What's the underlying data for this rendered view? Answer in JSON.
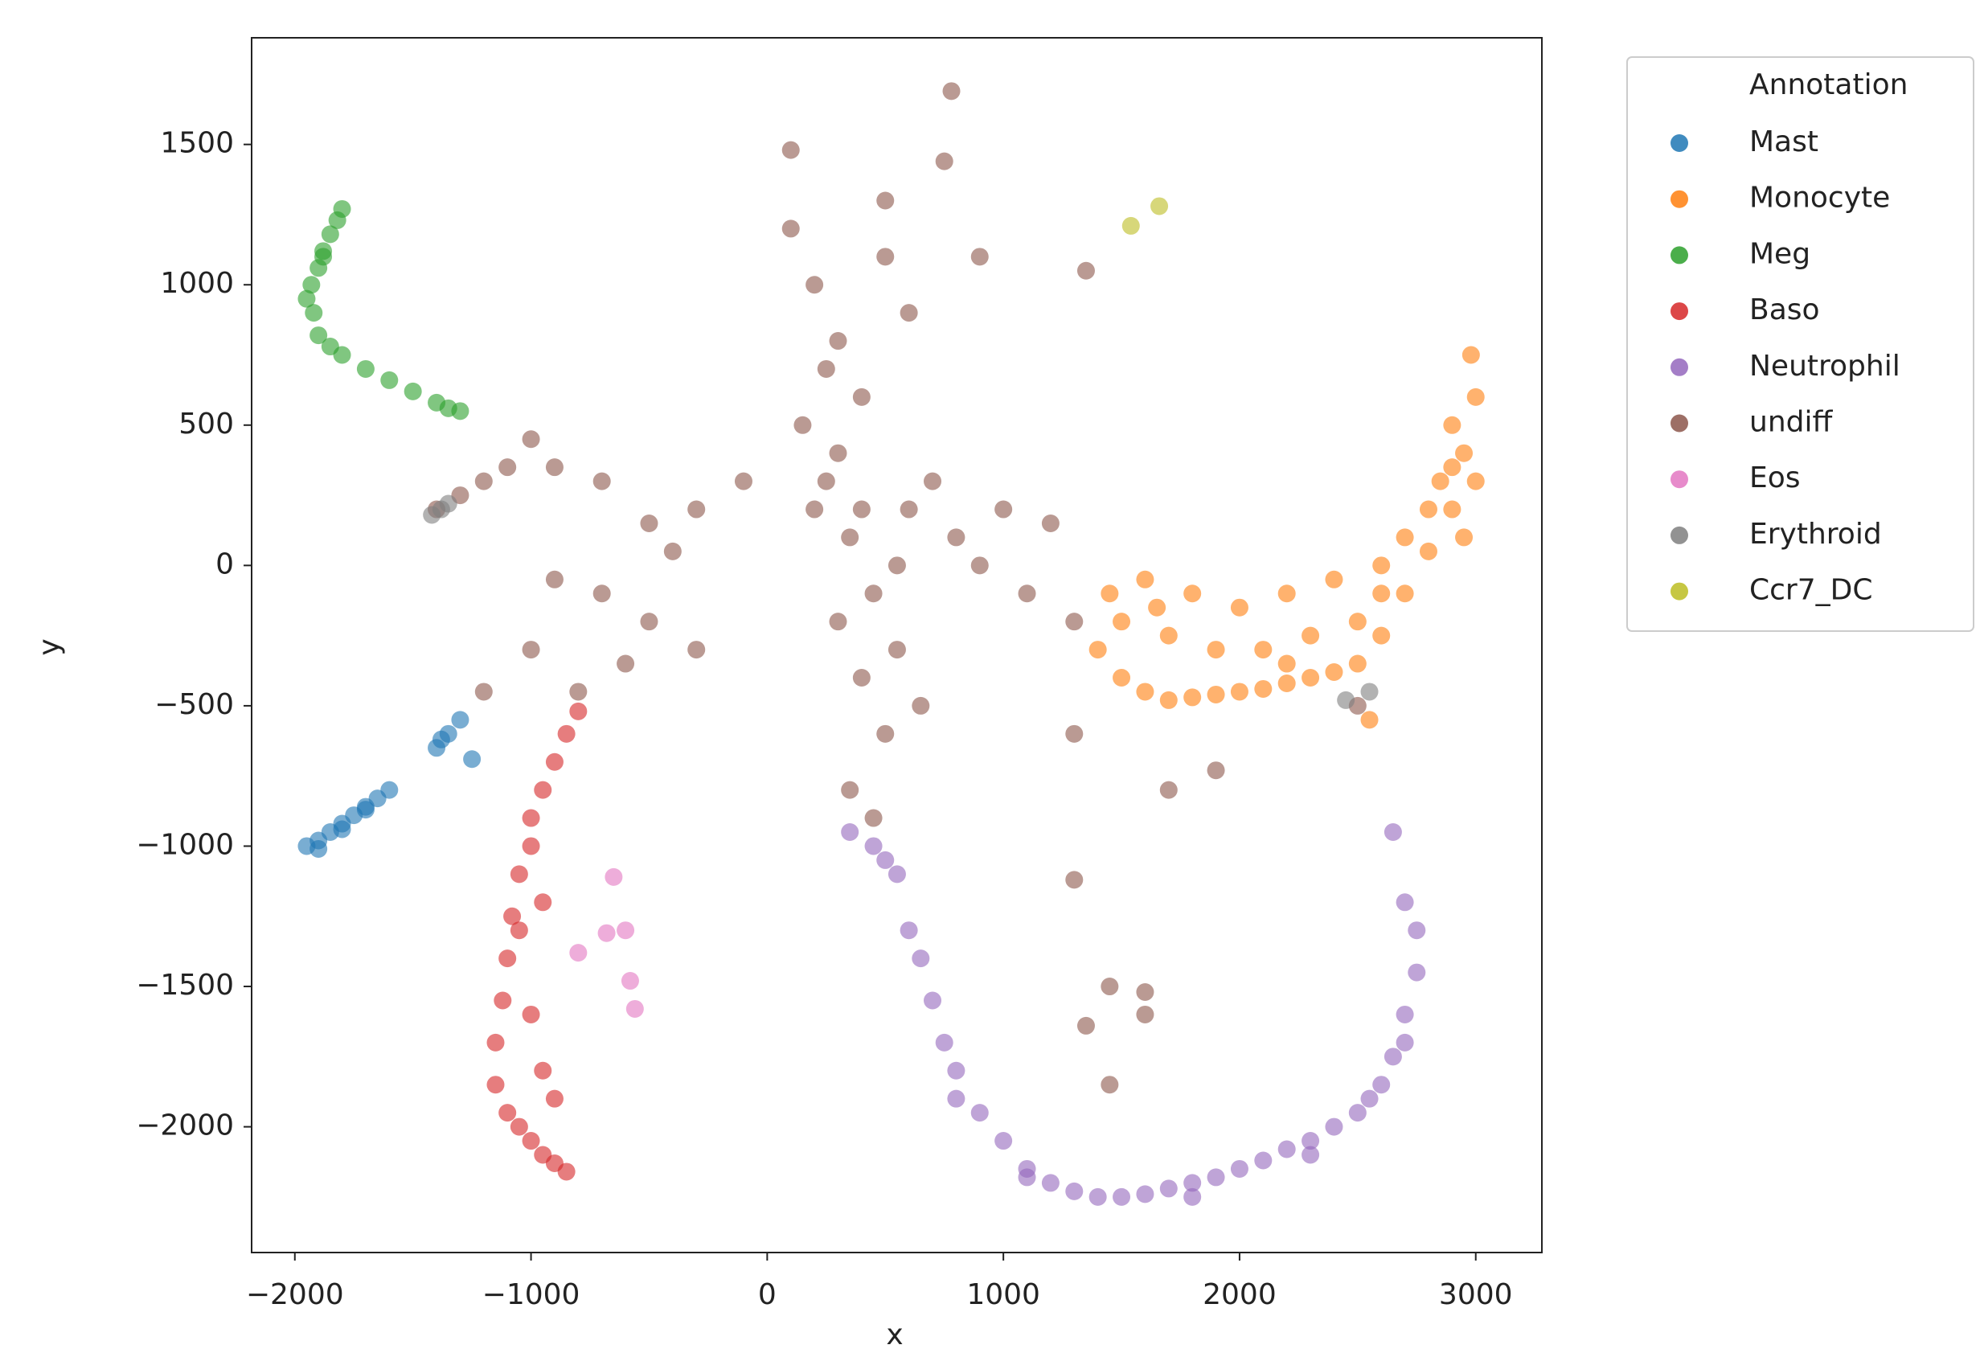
{
  "chart_data": {
    "type": "scatter",
    "xlabel": "x",
    "ylabel": "y",
    "legend_title": "Annotation",
    "legend": "right",
    "xlim": [
      -2183,
      3280
    ],
    "ylim": [
      -2448,
      1880
    ],
    "xticks": [
      {
        "value": -2000,
        "label": "−2000"
      },
      {
        "value": -1000,
        "label": "−1000"
      },
      0,
      1000,
      2000,
      3000
    ],
    "yticks": [
      {
        "value": -2000,
        "label": "−2000"
      },
      {
        "value": -1500,
        "label": "−1500"
      },
      {
        "value": -1000,
        "label": "−1000"
      },
      {
        "value": -500,
        "label": "−500"
      },
      0,
      500,
      1000,
      1500
    ],
    "series": [
      {
        "name": "Mast",
        "color": "#1f77b4",
        "x": [
          -1950,
          -1900,
          -1850,
          -1800,
          -1750,
          -1700,
          -1650,
          -1600,
          -1900,
          -1800,
          -1700,
          -1400,
          -1350,
          -1300,
          -1250,
          -1380
        ],
        "y": [
          -1000,
          -980,
          -950,
          -920,
          -890,
          -860,
          -830,
          -800,
          -1010,
          -940,
          -870,
          -650,
          -600,
          -550,
          -690,
          -620
        ]
      },
      {
        "name": "Monocyte",
        "color": "#ff7f0e",
        "x": [
          1400,
          1500,
          1600,
          1700,
          1800,
          1900,
          2000,
          2100,
          2200,
          2300,
          2400,
          2500,
          2600,
          2700,
          2800,
          2900,
          2950,
          3000,
          2980,
          2900,
          2850,
          1450,
          1600,
          1800,
          2000,
          2200,
          2400,
          2600,
          2700,
          2800,
          2900,
          1500,
          1700,
          1900,
          2100,
          2300,
          2500,
          2600,
          1650,
          2200,
          2550,
          3000,
          2950
        ],
        "y": [
          -300,
          -400,
          -450,
          -480,
          -470,
          -460,
          -450,
          -440,
          -420,
          -400,
          -380,
          -350,
          -250,
          -100,
          50,
          200,
          400,
          600,
          750,
          500,
          300,
          -100,
          -50,
          -100,
          -150,
          -100,
          -50,
          0,
          100,
          200,
          350,
          -200,
          -250,
          -300,
          -300,
          -250,
          -200,
          -100,
          -150,
          -350,
          -550,
          300,
          100
        ]
      },
      {
        "name": "Meg",
        "color": "#2ca02c",
        "x": [
          -1800,
          -1820,
          -1850,
          -1880,
          -1900,
          -1930,
          -1950,
          -1920,
          -1900,
          -1850,
          -1800,
          -1700,
          -1600,
          -1500,
          -1400,
          -1350,
          -1300,
          -1880
        ],
        "y": [
          1270,
          1230,
          1180,
          1120,
          1060,
          1000,
          950,
          900,
          820,
          780,
          750,
          700,
          660,
          620,
          580,
          560,
          550,
          1100
        ]
      },
      {
        "name": "Baso",
        "color": "#d62728",
        "x": [
          -800,
          -850,
          -900,
          -950,
          -1000,
          -1000,
          -1050,
          -1080,
          -1100,
          -1120,
          -1150,
          -1150,
          -1100,
          -1050,
          -1000,
          -950,
          -900,
          -850,
          -1000,
          -950,
          -1050,
          -900,
          -950
        ],
        "y": [
          -520,
          -600,
          -700,
          -800,
          -900,
          -1000,
          -1100,
          -1250,
          -1400,
          -1550,
          -1700,
          -1850,
          -1950,
          -2000,
          -2050,
          -2100,
          -2130,
          -2160,
          -1600,
          -1800,
          -1300,
          -1900,
          -1200
        ]
      },
      {
        "name": "Neutrophil",
        "color": "#9467bd",
        "x": [
          350,
          450,
          550,
          600,
          650,
          700,
          750,
          800,
          900,
          1000,
          1100,
          1200,
          1300,
          1400,
          1500,
          1600,
          1700,
          1800,
          1900,
          2000,
          2100,
          2200,
          2300,
          2400,
          2500,
          2600,
          2650,
          2700,
          2750,
          2750,
          2700,
          2650,
          2700,
          500,
          800,
          1100,
          1800,
          2300,
          2550
        ],
        "y": [
          -950,
          -1000,
          -1100,
          -1300,
          -1400,
          -1550,
          -1700,
          -1800,
          -1950,
          -2050,
          -2150,
          -2200,
          -2230,
          -2250,
          -2250,
          -2240,
          -2220,
          -2200,
          -2180,
          -2150,
          -2120,
          -2080,
          -2050,
          -2000,
          -1950,
          -1850,
          -1750,
          -1600,
          -1450,
          -1300,
          -1200,
          -950,
          -1700,
          -1050,
          -1900,
          -2180,
          -2250,
          -2100,
          -1900
        ]
      },
      {
        "name": "undiff",
        "color": "#8c564b",
        "x": [
          100,
          200,
          300,
          400,
          500,
          600,
          150,
          250,
          350,
          450,
          550,
          650,
          200,
          300,
          400,
          500,
          300,
          400,
          350,
          450,
          250,
          550,
          600,
          700,
          800,
          900,
          1000,
          1100,
          1200,
          1300,
          -100,
          -300,
          -500,
          -700,
          -900,
          -1000,
          -1100,
          -1200,
          -1300,
          -1400,
          -900,
          -700,
          -500,
          -300,
          -1200,
          -1000,
          -800,
          -600,
          -400,
          780,
          750,
          900,
          1350,
          1450,
          1600,
          1700,
          1900,
          1300,
          1450,
          1600,
          1350,
          2500,
          1300,
          100,
          500
        ],
        "y": [
          1200,
          1000,
          800,
          600,
          1300,
          900,
          500,
          300,
          100,
          -100,
          -300,
          -500,
          200,
          -200,
          -400,
          -600,
          400,
          200,
          -800,
          -900,
          700,
          0,
          200,
          300,
          100,
          0,
          200,
          -100,
          150,
          -200,
          300,
          200,
          150,
          300,
          350,
          450,
          350,
          300,
          250,
          200,
          -50,
          -100,
          -200,
          -300,
          -450,
          -300,
          -450,
          -350,
          50,
          1690,
          1440,
          1100,
          1050,
          -1500,
          -1600,
          -800,
          -730,
          -1120,
          -1850,
          -1520,
          -1640,
          -500,
          -600,
          1480,
          1100
        ]
      },
      {
        "name": "Eos",
        "color": "#e377c2",
        "x": [
          -800,
          -650,
          -680,
          -600,
          -580,
          -560
        ],
        "y": [
          -1380,
          -1110,
          -1310,
          -1300,
          -1480,
          -1580
        ]
      },
      {
        "name": "Erythroid",
        "color": "#7f7f7f",
        "x": [
          -1420,
          -1380,
          -1350,
          2450,
          2550
        ],
        "y": [
          180,
          200,
          220,
          -480,
          -450
        ]
      },
      {
        "name": "Ccr7_DC",
        "color": "#bcbd22",
        "x": [
          1540,
          1660
        ],
        "y": [
          1210,
          1280
        ]
      }
    ]
  }
}
